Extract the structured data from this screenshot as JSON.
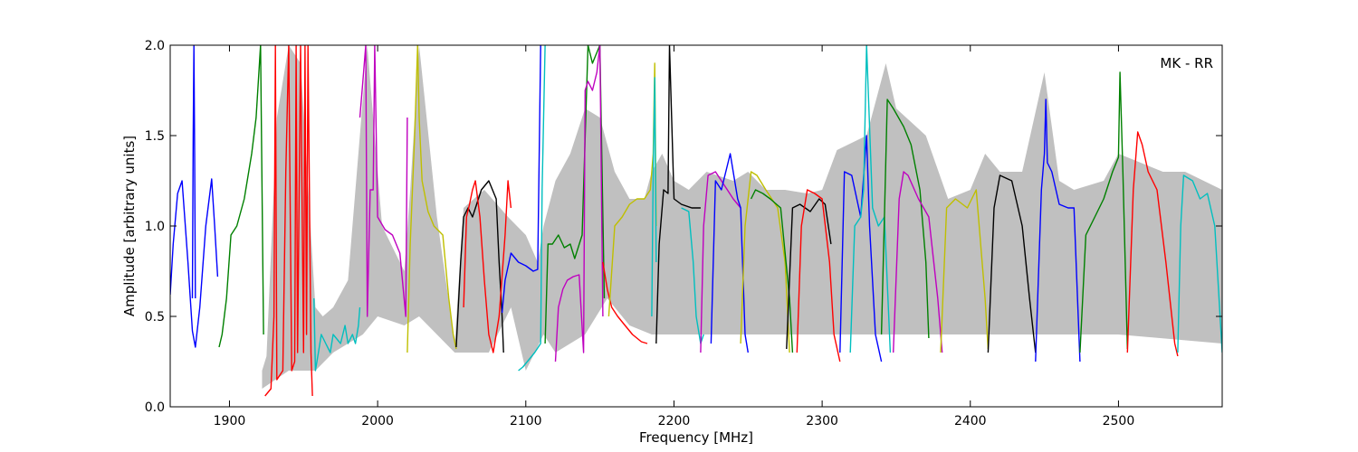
{
  "chart_data": {
    "type": "line",
    "title": "",
    "annotation": "MK - RR",
    "xlabel": "Frequency [MHz]",
    "ylabel": "Amplitude [arbitrary units]",
    "xlim": [
      1860,
      2570
    ],
    "ylim": [
      0.0,
      2.0
    ],
    "xticks": [
      1900,
      2000,
      2100,
      2200,
      2300,
      2400,
      2500
    ],
    "yticks": [
      0.0,
      0.5,
      1.0,
      1.5,
      2.0
    ],
    "xtick_labels": [
      "1900",
      "2000",
      "2100",
      "2200",
      "2300",
      "2400",
      "2500"
    ],
    "ytick_labels": [
      "0.0",
      "0.5",
      "1.0",
      "1.5",
      "2.0"
    ],
    "grid": false,
    "background_fill": {
      "color": "#c0c0c0",
      "upper": [
        [
          1922,
          0.2
        ],
        [
          1925,
          0.28
        ],
        [
          1932,
          1.6
        ],
        [
          1940,
          2.0
        ],
        [
          1948,
          1.9
        ],
        [
          1958,
          0.55
        ],
        [
          1963,
          0.5
        ],
        [
          1970,
          0.55
        ],
        [
          1980,
          0.7
        ],
        [
          1987,
          1.4
        ],
        [
          1993,
          2.0
        ],
        [
          2003,
          1.0
        ],
        [
          2018,
          0.75
        ],
        [
          2022,
          1.2
        ],
        [
          2028,
          2.0
        ],
        [
          2040,
          1.05
        ],
        [
          2052,
          0.35
        ],
        [
          2058,
          1.1
        ],
        [
          2072,
          1.2
        ],
        [
          2088,
          1.05
        ],
        [
          2100,
          0.95
        ],
        [
          2108,
          0.8
        ],
        [
          2112,
          1.0
        ],
        [
          2120,
          1.25
        ],
        [
          2130,
          1.4
        ],
        [
          2140,
          1.65
        ],
        [
          2150,
          1.6
        ],
        [
          2160,
          1.3
        ],
        [
          2170,
          1.15
        ],
        [
          2180,
          1.15
        ],
        [
          2185,
          1.3
        ],
        [
          2192,
          1.4
        ],
        [
          2200,
          1.25
        ],
        [
          2210,
          1.2
        ],
        [
          2222,
          1.3
        ],
        [
          2240,
          1.25
        ],
        [
          2250,
          1.3
        ],
        [
          2262,
          1.2
        ],
        [
          2275,
          1.2
        ],
        [
          2290,
          1.18
        ],
        [
          2300,
          1.2
        ],
        [
          2310,
          1.42
        ],
        [
          2330,
          1.5
        ],
        [
          2343,
          1.9
        ],
        [
          2350,
          1.65
        ],
        [
          2370,
          1.5
        ],
        [
          2385,
          1.15
        ],
        [
          2400,
          1.2
        ],
        [
          2405,
          1.3
        ],
        [
          2410,
          1.4
        ],
        [
          2420,
          1.3
        ],
        [
          2435,
          1.3
        ],
        [
          2450,
          1.85
        ],
        [
          2460,
          1.25
        ],
        [
          2470,
          1.2
        ],
        [
          2490,
          1.25
        ],
        [
          2500,
          1.4
        ],
        [
          2530,
          1.3
        ],
        [
          2545,
          1.3
        ],
        [
          2570,
          1.2
        ]
      ],
      "lower": [
        [
          1922,
          0.1
        ],
        [
          1940,
          0.2
        ],
        [
          1958,
          0.2
        ],
        [
          1970,
          0.3
        ],
        [
          1990,
          0.4
        ],
        [
          2000,
          0.5
        ],
        [
          2018,
          0.45
        ],
        [
          2028,
          0.5
        ],
        [
          2052,
          0.3
        ],
        [
          2075,
          0.3
        ],
        [
          2090,
          0.55
        ],
        [
          2100,
          0.2
        ],
        [
          2112,
          0.4
        ],
        [
          2120,
          0.3
        ],
        [
          2140,
          0.4
        ],
        [
          2155,
          0.6
        ],
        [
          2170,
          0.45
        ],
        [
          2185,
          0.4
        ],
        [
          2200,
          0.4
        ],
        [
          2300,
          0.4
        ],
        [
          2400,
          0.4
        ],
        [
          2500,
          0.4
        ],
        [
          2570,
          0.35
        ]
      ]
    },
    "series": [
      {
        "color": "#0000ff",
        "x": [
          1860,
          1862,
          1865,
          1868,
          1872,
          1875,
          1877,
          1880,
          1884,
          1888,
          1890,
          1892
        ],
        "y": [
          0.62,
          0.9,
          1.18,
          1.25,
          0.8,
          0.42,
          0.33,
          0.55,
          1.0,
          1.26,
          1.0,
          0.72
        ]
      },
      {
        "color": "#0000ff",
        "x": [
          1875,
          1875.5,
          1876,
          1876.5,
          1877
        ],
        "y": [
          0.6,
          1.5,
          2.0,
          1.4,
          0.6
        ]
      },
      {
        "color": "#008000",
        "x": [
          1893,
          1895,
          1898,
          1901,
          1905,
          1910,
          1915,
          1918,
          1921,
          1923
        ],
        "y": [
          0.33,
          0.4,
          0.6,
          0.95,
          1.0,
          1.15,
          1.4,
          1.6,
          2.0,
          0.4
        ]
      },
      {
        "color": "#ff0000",
        "x": [
          1924,
          1928,
          1930,
          1931,
          1932,
          1936,
          1938,
          1940,
          1942,
          1944,
          1945,
          1946,
          1948,
          1950,
          1951,
          1952,
          1953,
          1955,
          1956
        ],
        "y": [
          0.06,
          0.1,
          0.5,
          2.0,
          0.15,
          0.2,
          1.3,
          2.0,
          0.2,
          0.25,
          2.0,
          0.3,
          2.0,
          0.3,
          2.0,
          0.4,
          2.0,
          0.3,
          0.06
        ]
      },
      {
        "color": "#00bfbf",
        "x": [
          1957,
          1958,
          1960,
          1962,
          1965,
          1968,
          1970,
          1975,
          1978,
          1980,
          1983,
          1985,
          1987,
          1988
        ],
        "y": [
          0.6,
          0.2,
          0.3,
          0.4,
          0.35,
          0.3,
          0.4,
          0.35,
          0.45,
          0.35,
          0.4,
          0.35,
          0.45,
          0.55
        ]
      },
      {
        "color": "#bf00bf",
        "x": [
          1988,
          1990,
          1992,
          1993,
          1995,
          1997,
          1998,
          2000,
          2005,
          2010,
          2015,
          2019,
          2020
        ],
        "y": [
          1.6,
          1.8,
          2.0,
          0.5,
          1.2,
          1.2,
          2.0,
          1.05,
          0.98,
          0.95,
          0.85,
          0.5,
          1.6
        ]
      },
      {
        "color": "#bfbf00",
        "x": [
          2020,
          2022,
          2025,
          2027,
          2028,
          2030,
          2034,
          2038,
          2044,
          2048,
          2051,
          2053
        ],
        "y": [
          0.3,
          0.9,
          1.5,
          2.0,
          1.6,
          1.25,
          1.08,
          1.0,
          0.95,
          0.6,
          0.4,
          0.32
        ]
      },
      {
        "color": "#000000",
        "x": [
          2053,
          2056,
          2058,
          2061,
          2064,
          2070,
          2075,
          2080,
          2082,
          2084,
          2085
        ],
        "y": [
          0.33,
          0.8,
          1.05,
          1.1,
          1.05,
          1.2,
          1.25,
          1.15,
          0.8,
          0.5,
          0.3
        ]
      },
      {
        "color": "#ff0000",
        "x": [
          2058,
          2060,
          2062,
          2064,
          2066,
          2069,
          2072,
          2075,
          2078,
          2082,
          2086,
          2088,
          2090
        ],
        "y": [
          0.55,
          1.05,
          1.12,
          1.2,
          1.25,
          1.05,
          0.7,
          0.4,
          0.3,
          0.5,
          0.95,
          1.25,
          1.1
        ]
      },
      {
        "color": "#0000ff",
        "x": [
          2084,
          2086,
          2090,
          2095,
          2100,
          2105,
          2108,
          2110
        ],
        "y": [
          0.52,
          0.7,
          0.85,
          0.8,
          0.78,
          0.75,
          0.76,
          2.0
        ]
      },
      {
        "color": "#00bfbf",
        "x": [
          2095,
          2098,
          2102,
          2106,
          2110,
          2111,
          2113
        ],
        "y": [
          0.2,
          0.22,
          0.26,
          0.3,
          0.35,
          1.2,
          2.0
        ]
      },
      {
        "color": "#008000",
        "x": [
          2113,
          2115,
          2118,
          2122,
          2126,
          2130,
          2133,
          2138,
          2142,
          2145,
          2150,
          2153
        ],
        "y": [
          0.35,
          0.9,
          0.9,
          0.95,
          0.88,
          0.9,
          0.82,
          0.95,
          2.0,
          1.9,
          2.0,
          0.6
        ]
      },
      {
        "color": "#bf00bf",
        "x": [
          2120,
          2122,
          2125,
          2128,
          2132,
          2136,
          2139,
          2140,
          2142,
          2145,
          2148,
          2150,
          2152
        ],
        "y": [
          0.25,
          0.55,
          0.65,
          0.7,
          0.72,
          0.73,
          0.3,
          1.75,
          1.8,
          1.75,
          1.85,
          2.0,
          0.5
        ]
      },
      {
        "color": "#ff0000",
        "x": [
          2152,
          2155,
          2158,
          2162,
          2167,
          2172,
          2178,
          2182
        ],
        "y": [
          0.8,
          0.65,
          0.55,
          0.5,
          0.45,
          0.4,
          0.36,
          0.35
        ]
      },
      {
        "color": "#bfbf00",
        "x": [
          2156,
          2160,
          2165,
          2170,
          2175,
          2180,
          2184,
          2186,
          2187,
          2188
        ],
        "y": [
          0.5,
          1.0,
          1.05,
          1.12,
          1.15,
          1.15,
          1.2,
          1.4,
          1.9,
          1.0
        ]
      },
      {
        "color": "#00bfbf",
        "x": [
          2185,
          2186,
          2187,
          2188
        ],
        "y": [
          0.5,
          1.3,
          1.82,
          0.8
        ]
      },
      {
        "color": "#000000",
        "x": [
          2188,
          2190,
          2193,
          2196,
          2197,
          2200,
          2205,
          2212,
          2218
        ],
        "y": [
          0.35,
          0.9,
          1.2,
          1.18,
          2.0,
          1.15,
          1.12,
          1.1,
          1.1
        ]
      },
      {
        "color": "#00bfbf",
        "x": [
          2205,
          2210,
          2213,
          2215,
          2218,
          2220
        ],
        "y": [
          1.1,
          1.08,
          0.8,
          0.5,
          0.35,
          0.4
        ]
      },
      {
        "color": "#bf00bf",
        "x": [
          2218,
          2220,
          2223,
          2228,
          2232,
          2236,
          2240,
          2245
        ],
        "y": [
          0.3,
          1.0,
          1.28,
          1.3,
          1.25,
          1.2,
          1.15,
          1.1
        ]
      },
      {
        "color": "#0000ff",
        "x": [
          2225,
          2228,
          2232,
          2238,
          2243,
          2245,
          2248,
          2250
        ],
        "y": [
          0.35,
          1.25,
          1.2,
          1.4,
          1.15,
          1.1,
          0.4,
          0.3
        ]
      },
      {
        "color": "#bfbf00",
        "x": [
          2245,
          2248,
          2252,
          2256,
          2262,
          2270,
          2275,
          2278
        ],
        "y": [
          0.35,
          1.0,
          1.3,
          1.28,
          1.2,
          1.1,
          0.8,
          0.3
        ]
      },
      {
        "color": "#008000",
        "x": [
          2252,
          2255,
          2260,
          2265,
          2272,
          2278,
          2280
        ],
        "y": [
          1.15,
          1.2,
          1.18,
          1.15,
          1.1,
          0.6,
          0.3
        ]
      },
      {
        "color": "#000000",
        "x": [
          2276,
          2280,
          2285,
          2292,
          2298,
          2302,
          2306
        ],
        "y": [
          0.32,
          1.1,
          1.12,
          1.08,
          1.15,
          1.12,
          0.9
        ]
      },
      {
        "color": "#ff0000",
        "x": [
          2283,
          2286,
          2290,
          2295,
          2300,
          2305,
          2308,
          2312
        ],
        "y": [
          0.3,
          1.0,
          1.2,
          1.18,
          1.15,
          0.8,
          0.4,
          0.25
        ]
      },
      {
        "color": "#0000ff",
        "x": [
          2312,
          2315,
          2320,
          2326,
          2330,
          2332,
          2336,
          2340
        ],
        "y": [
          0.3,
          1.3,
          1.28,
          1.05,
          1.5,
          1.0,
          0.4,
          0.25
        ]
      },
      {
        "color": "#00bfbf",
        "x": [
          2319,
          2322,
          2326,
          2328,
          2330,
          2334,
          2338,
          2342,
          2346
        ],
        "y": [
          0.3,
          1.0,
          1.05,
          1.2,
          2.0,
          1.1,
          1.0,
          1.05,
          0.3
        ]
      },
      {
        "color": "#008000",
        "x": [
          2340,
          2342,
          2344,
          2348,
          2355,
          2360,
          2366,
          2370,
          2372
        ],
        "y": [
          0.4,
          1.05,
          1.7,
          1.65,
          1.55,
          1.45,
          1.2,
          0.8,
          0.38
        ]
      },
      {
        "color": "#bf00bf",
        "x": [
          2348,
          2352,
          2355,
          2358,
          2365,
          2372,
          2378,
          2381
        ],
        "y": [
          0.3,
          1.15,
          1.3,
          1.28,
          1.15,
          1.05,
          0.6,
          0.3
        ]
      },
      {
        "color": "#bfbf00",
        "x": [
          2380,
          2384,
          2390,
          2398,
          2404,
          2410,
          2412
        ],
        "y": [
          0.3,
          1.1,
          1.15,
          1.1,
          1.2,
          0.6,
          0.32
        ]
      },
      {
        "color": "#000000",
        "x": [
          2412,
          2416,
          2420,
          2428,
          2435,
          2440,
          2444
        ],
        "y": [
          0.3,
          1.1,
          1.28,
          1.25,
          1.0,
          0.6,
          0.3
        ]
      },
      {
        "color": "#0000ff",
        "x": [
          2444,
          2448,
          2450,
          2451,
          2452,
          2455,
          2460,
          2466,
          2470,
          2474
        ],
        "y": [
          0.25,
          1.2,
          1.4,
          1.7,
          1.35,
          1.3,
          1.12,
          1.1,
          1.1,
          0.25
        ]
      },
      {
        "color": "#008000",
        "x": [
          2474,
          2478,
          2484,
          2490,
          2496,
          2500,
          2501,
          2503,
          2506
        ],
        "y": [
          0.3,
          0.95,
          1.05,
          1.15,
          1.3,
          1.38,
          1.85,
          1.3,
          0.32
        ]
      },
      {
        "color": "#ff0000",
        "x": [
          2506,
          2510,
          2513,
          2516,
          2520,
          2526,
          2532,
          2538,
          2540
        ],
        "y": [
          0.3,
          1.2,
          1.52,
          1.45,
          1.3,
          1.2,
          0.8,
          0.35,
          0.28
        ]
      },
      {
        "color": "#00bfbf",
        "x": [
          2540,
          2542,
          2544,
          2550,
          2555,
          2560,
          2565,
          2570
        ],
        "y": [
          0.3,
          1.0,
          1.28,
          1.25,
          1.15,
          1.18,
          1.0,
          0.3
        ]
      }
    ]
  }
}
